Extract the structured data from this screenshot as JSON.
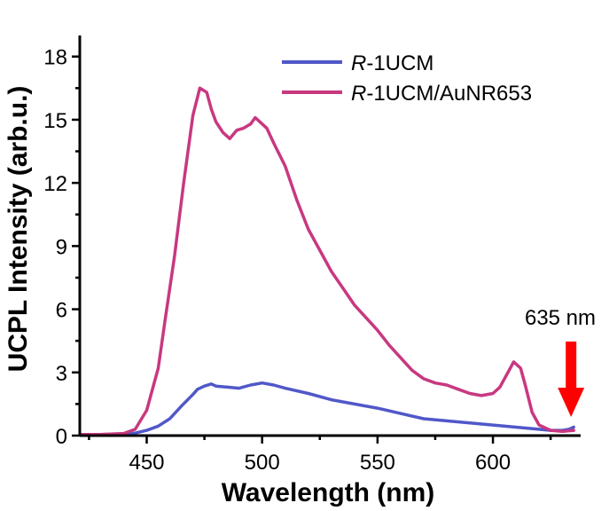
{
  "chart_data": {
    "type": "line",
    "xlabel": "Wavelength (nm)",
    "ylabel": "UCPL Intensity (arb.u.)",
    "xlim": [
      421,
      638
    ],
    "ylim": [
      0,
      19
    ],
    "xticks": [
      450,
      500,
      550,
      600
    ],
    "yticks": [
      0,
      3,
      6,
      9,
      12,
      15,
      18
    ],
    "legend_position": "top-right",
    "series": [
      {
        "name_italic": "R",
        "name_rest": "-1UCM",
        "color": "#5058c8",
        "x": [
          422,
          430,
          440,
          445,
          450,
          455,
          460,
          465,
          470,
          472,
          475,
          478,
          480,
          485,
          490,
          495,
          500,
          505,
          510,
          520,
          530,
          540,
          550,
          560,
          570,
          580,
          590,
          600,
          610,
          620,
          625,
          630,
          633,
          635
        ],
        "y": [
          0.05,
          0.05,
          0.08,
          0.12,
          0.25,
          0.45,
          0.8,
          1.4,
          1.95,
          2.2,
          2.35,
          2.45,
          2.35,
          2.3,
          2.25,
          2.4,
          2.5,
          2.4,
          2.25,
          2.0,
          1.7,
          1.5,
          1.3,
          1.05,
          0.8,
          0.7,
          0.6,
          0.5,
          0.4,
          0.3,
          0.25,
          0.25,
          0.3,
          0.4
        ]
      },
      {
        "name_italic": "R",
        "name_rest": "-1UCM/AuNR653",
        "color": "#c83880",
        "x": [
          422,
          430,
          440,
          445,
          450,
          455,
          458,
          462,
          466,
          470,
          473,
          476,
          478,
          480,
          483,
          486,
          489,
          492,
          495,
          497,
          499,
          502,
          505,
          510,
          515,
          520,
          525,
          530,
          535,
          540,
          545,
          550,
          555,
          560,
          565,
          570,
          575,
          580,
          585,
          590,
          595,
          600,
          603,
          606,
          609,
          612,
          614,
          617,
          620,
          625,
          630,
          635
        ],
        "y": [
          0.05,
          0.05,
          0.1,
          0.3,
          1.2,
          3.2,
          5.5,
          8.5,
          12.0,
          15.2,
          16.5,
          16.3,
          15.5,
          14.9,
          14.4,
          14.1,
          14.5,
          14.6,
          14.8,
          15.1,
          14.9,
          14.6,
          13.9,
          12.8,
          11.2,
          9.8,
          8.8,
          7.8,
          7.0,
          6.2,
          5.6,
          5.0,
          4.3,
          3.7,
          3.1,
          2.7,
          2.5,
          2.4,
          2.2,
          2.0,
          1.9,
          2.0,
          2.3,
          2.9,
          3.5,
          3.2,
          2.4,
          1.1,
          0.5,
          0.25,
          0.2,
          0.25
        ]
      }
    ],
    "annotation": {
      "text": "635 nm",
      "arrow_x": 635,
      "arrow_color": "#ff0000"
    }
  }
}
